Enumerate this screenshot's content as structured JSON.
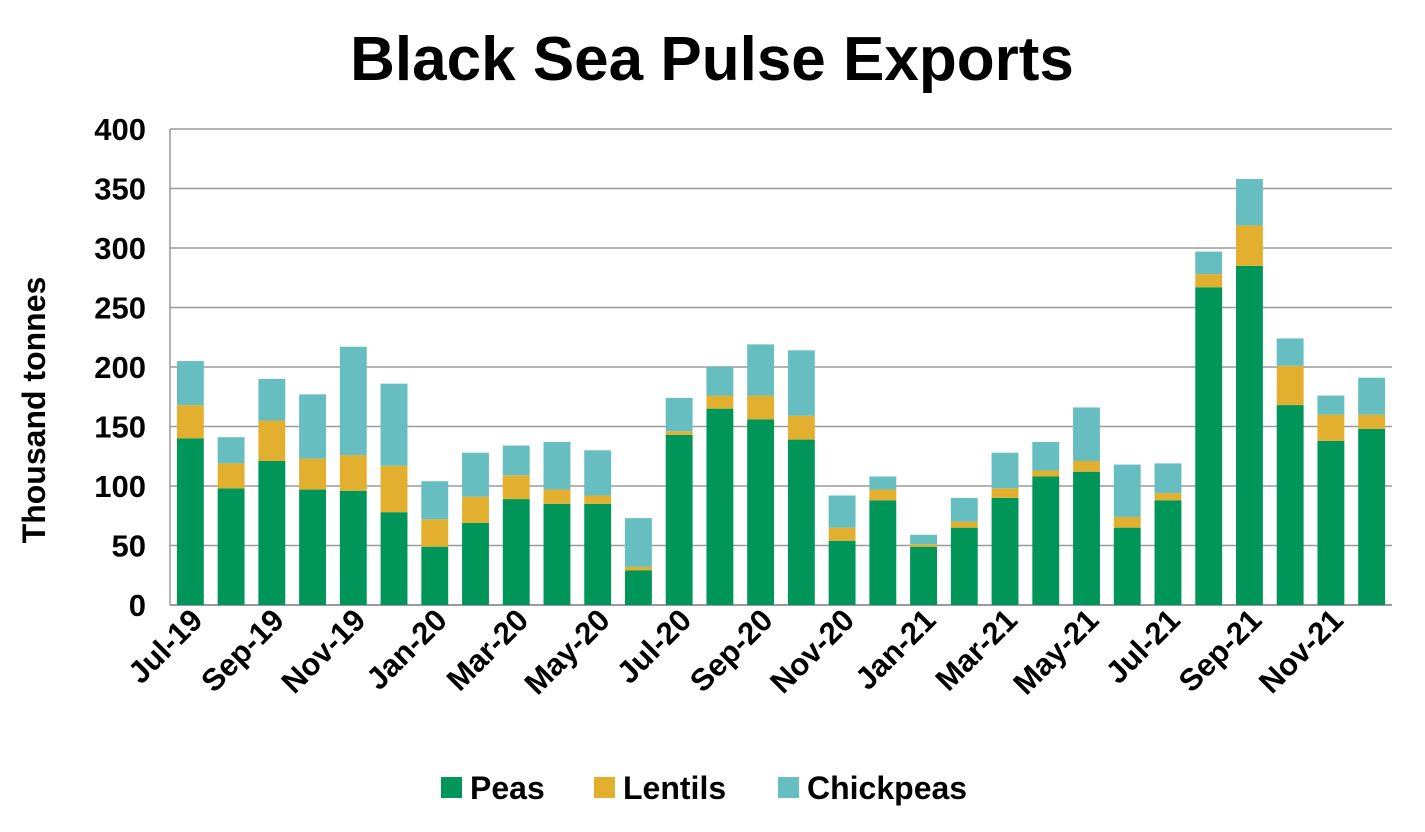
{
  "chart_data": {
    "type": "bar",
    "stacked": true,
    "title": "Black Sea Pulse Exports",
    "xlabel": "",
    "ylabel": "Thousand tonnes",
    "ylim": [
      0,
      400
    ],
    "yticks": [
      0,
      50,
      100,
      150,
      200,
      250,
      300,
      350,
      400
    ],
    "grid": true,
    "legend_position": "bottom",
    "categories": [
      "Jul-19",
      "Aug-19",
      "Sep-19",
      "Oct-19",
      "Nov-19",
      "Dec-19",
      "Jan-20",
      "Feb-20",
      "Mar-20",
      "Apr-20",
      "May-20",
      "Jun-20",
      "Jul-20",
      "Aug-20",
      "Sep-20",
      "Oct-20",
      "Nov-20",
      "Dec-20",
      "Jan-21",
      "Feb-21",
      "Mar-21",
      "Apr-21",
      "May-21",
      "Jun-21",
      "Jul-21",
      "Aug-21",
      "Sep-21",
      "Oct-21",
      "Nov-21",
      "Dec-21"
    ],
    "xtick_labels": [
      "Jul-19",
      "Sep-19",
      "Nov-19",
      "Jan-20",
      "Mar-20",
      "May-20",
      "Jul-20",
      "Sep-20",
      "Nov-20",
      "Jan-21",
      "Mar-21",
      "May-21",
      "Jul-21",
      "Sep-21",
      "Nov-21"
    ],
    "series": [
      {
        "name": "Peas",
        "color": "#00965a",
        "values": [
          140,
          98,
          121,
          97,
          96,
          78,
          49,
          69,
          89,
          85,
          85,
          29,
          143,
          165,
          156,
          139,
          54,
          88,
          49,
          65,
          90,
          108,
          112,
          65,
          88,
          267,
          285,
          168,
          138,
          148
        ]
      },
      {
        "name": "Lentils",
        "color": "#e2af2f",
        "values": [
          28,
          21,
          34,
          26,
          30,
          39,
          23,
          22,
          20,
          12,
          7,
          3,
          3,
          11,
          20,
          20,
          11,
          9,
          2,
          5,
          8,
          5,
          9,
          9,
          6,
          11,
          34,
          33,
          22,
          12
        ]
      },
      {
        "name": "Chickpeas",
        "color": "#67bec0",
        "values": [
          37,
          22,
          35,
          54,
          91,
          69,
          32,
          37,
          25,
          40,
          38,
          41,
          28,
          24,
          43,
          55,
          27,
          11,
          8,
          20,
          30,
          24,
          45,
          44,
          25,
          19,
          39,
          23,
          16,
          31
        ]
      }
    ]
  }
}
